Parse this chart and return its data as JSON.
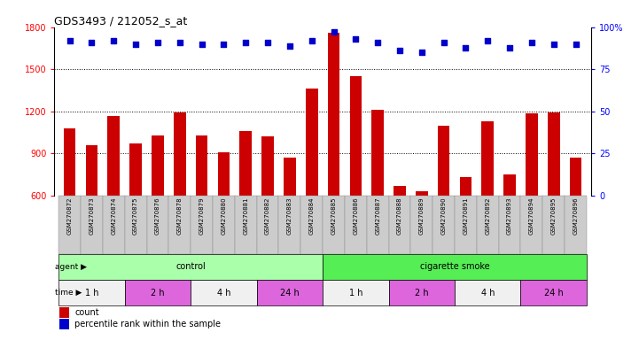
{
  "title": "GDS3493 / 212052_s_at",
  "samples": [
    "GSM270872",
    "GSM270873",
    "GSM270874",
    "GSM270875",
    "GSM270876",
    "GSM270878",
    "GSM270879",
    "GSM270880",
    "GSM270881",
    "GSM270882",
    "GSM270883",
    "GSM270884",
    "GSM270885",
    "GSM270886",
    "GSM270887",
    "GSM270888",
    "GSM270889",
    "GSM270890",
    "GSM270891",
    "GSM270892",
    "GSM270893",
    "GSM270894",
    "GSM270895",
    "GSM270896"
  ],
  "counts": [
    1080,
    960,
    1170,
    970,
    1030,
    1195,
    1030,
    910,
    1060,
    1020,
    870,
    1360,
    1760,
    1450,
    1210,
    670,
    630,
    1100,
    730,
    1130,
    750,
    1185,
    1195,
    870
  ],
  "percentile_ranks": [
    92,
    91,
    92,
    90,
    91,
    91,
    90,
    90,
    91,
    91,
    89,
    92,
    97,
    93,
    91,
    86,
    85,
    91,
    88,
    92,
    88,
    91,
    90,
    90
  ],
  "bar_color": "#cc0000",
  "dot_color": "#0000cc",
  "ylim_left": [
    600,
    1800
  ],
  "ylim_right": [
    0,
    100
  ],
  "yticks_left": [
    600,
    900,
    1200,
    1500,
    1800
  ],
  "yticks_right": [
    0,
    25,
    50,
    75,
    100
  ],
  "grid_lines": [
    900,
    1200,
    1500
  ],
  "agent_groups": [
    {
      "label": "control",
      "start": 0,
      "end": 12,
      "color": "#aaffaa"
    },
    {
      "label": "cigarette smoke",
      "start": 12,
      "end": 24,
      "color": "#55ee55"
    }
  ],
  "time_groups": [
    {
      "label": "1 h",
      "start": 0,
      "end": 3,
      "color": "#f0f0f0"
    },
    {
      "label": "2 h",
      "start": 3,
      "end": 6,
      "color": "#dd66dd"
    },
    {
      "label": "4 h",
      "start": 6,
      "end": 9,
      "color": "#f0f0f0"
    },
    {
      "label": "24 h",
      "start": 9,
      "end": 12,
      "color": "#dd66dd"
    },
    {
      "label": "1 h",
      "start": 12,
      "end": 15,
      "color": "#f0f0f0"
    },
    {
      "label": "2 h",
      "start": 15,
      "end": 18,
      "color": "#dd66dd"
    },
    {
      "label": "4 h",
      "start": 18,
      "end": 21,
      "color": "#f0f0f0"
    },
    {
      "label": "24 h",
      "start": 21,
      "end": 24,
      "color": "#dd66dd"
    }
  ],
  "legend_count_label": "count",
  "legend_pct_label": "percentile rank within the sample",
  "bg_color": "#ffffff",
  "tick_bg": "#cccccc"
}
